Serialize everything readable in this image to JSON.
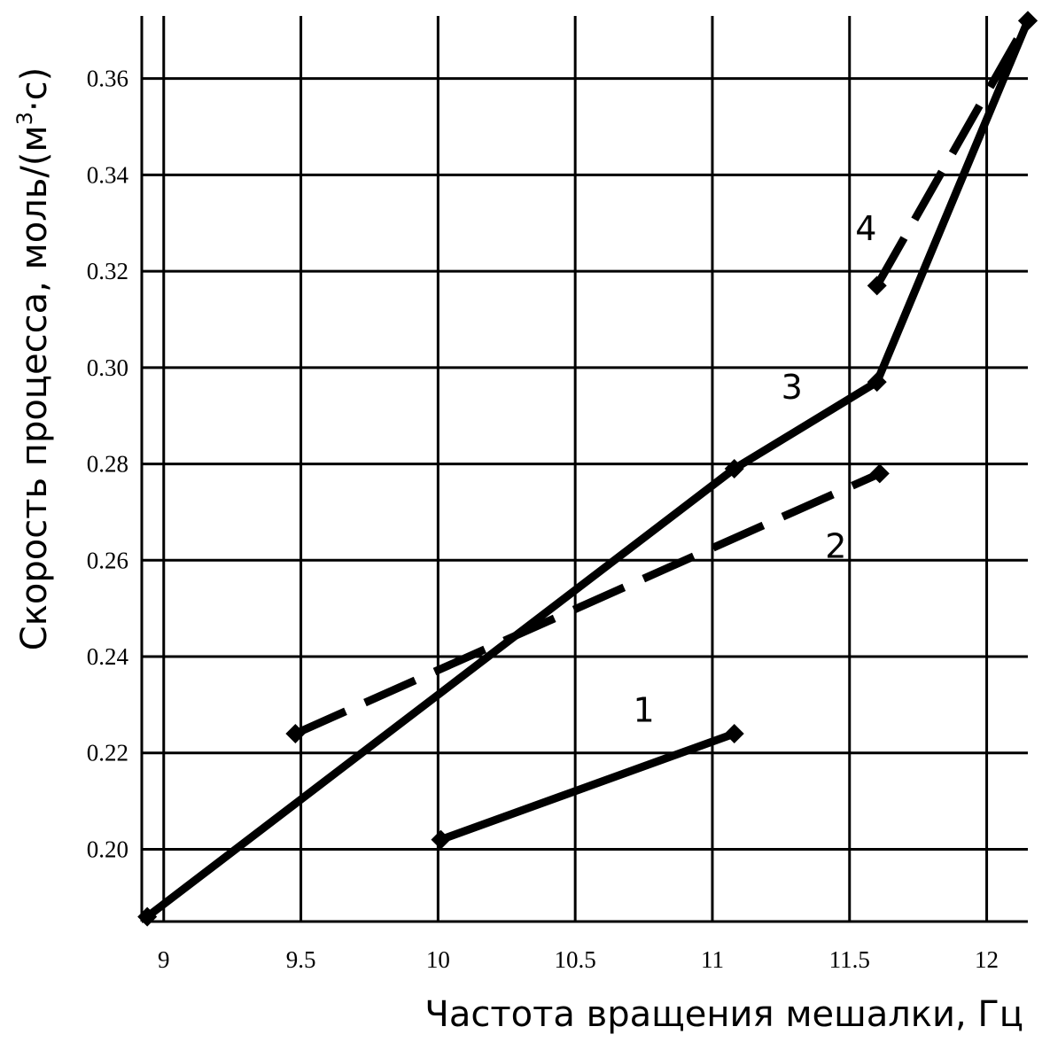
{
  "chart_data": {
    "type": "line",
    "xlabel": "Частота вращения мешалки, Гц",
    "ylabel_main": "Скорость процесса, моль/(м",
    "ylabel_sup": "3",
    "ylabel_tail": "·с)",
    "xlim": [
      8.92,
      12.15
    ],
    "ylim": [
      0.185,
      0.373
    ],
    "xticks": [
      9,
      9.5,
      10,
      10.5,
      11,
      11.5,
      12
    ],
    "xtick_labels": [
      "9",
      "9.5",
      "10",
      "10.5",
      "11",
      "11.5",
      "12"
    ],
    "yticks": [
      0.2,
      0.22,
      0.24,
      0.26,
      0.28,
      0.3,
      0.32,
      0.34,
      0.36
    ],
    "ytick_labels": [
      "0.20",
      "0.22",
      "0.24",
      "0.26",
      "0.28",
      "0.30",
      "0.32",
      "0.34",
      "0.36"
    ],
    "grid": true,
    "series": [
      {
        "label": "1",
        "style": "solid",
        "x": [
          10.01,
          11.08
        ],
        "y": [
          0.202,
          0.224
        ]
      },
      {
        "label": "2",
        "style": "dashed",
        "x": [
          9.48,
          11.61
        ],
        "y": [
          0.224,
          0.278
        ]
      },
      {
        "label": "3",
        "style": "solid",
        "x": [
          8.94,
          11.08,
          11.6,
          12.15
        ],
        "y": [
          0.186,
          0.279,
          0.297,
          0.372
        ]
      },
      {
        "label": "4",
        "style": "dashed",
        "x": [
          11.6,
          12.15
        ],
        "y": [
          0.317,
          0.372
        ]
      }
    ],
    "colors": {
      "line": "#000000",
      "grid": "#000000",
      "background": "#ffffff"
    }
  }
}
